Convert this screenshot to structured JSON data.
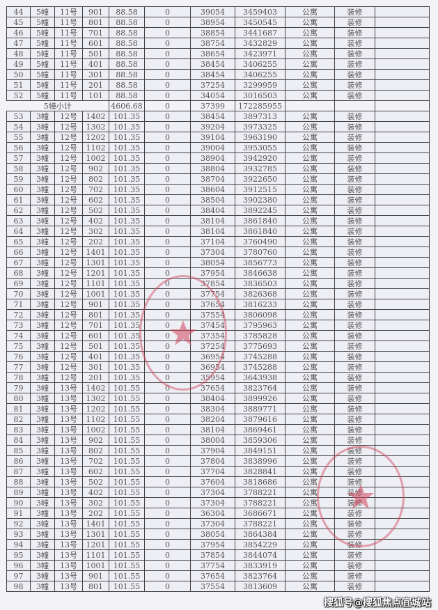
{
  "rows": [
    [
      "44",
      "5幢",
      "11号",
      "901",
      "88.58",
      "0",
      "39054",
      "3459403",
      "公寓",
      "装修",
      ""
    ],
    [
      "45",
      "5幢",
      "11号",
      "801",
      "88.58",
      "0",
      "38954",
      "3450545",
      "公寓",
      "装修",
      ""
    ],
    [
      "46",
      "5幢",
      "11号",
      "701",
      "88.58",
      "0",
      "38854",
      "3441687",
      "公寓",
      "装修",
      ""
    ],
    [
      "47",
      "5幢",
      "11号",
      "601",
      "88.58",
      "0",
      "38754",
      "3432829",
      "公寓",
      "装修",
      ""
    ],
    [
      "48",
      "5幢",
      "11号",
      "501",
      "88.58",
      "0",
      "38654",
      "3423971",
      "公寓",
      "装修",
      ""
    ],
    [
      "49",
      "5幢",
      "11号",
      "401",
      "88.58",
      "0",
      "38454",
      "3406255",
      "公寓",
      "装修",
      ""
    ],
    [
      "50",
      "5幢",
      "11号",
      "301",
      "88.58",
      "0",
      "38454",
      "3406255",
      "公寓",
      "装修",
      ""
    ],
    [
      "51",
      "5幢",
      "11号",
      "201",
      "88.58",
      "0",
      "37254",
      "3299959",
      "公寓",
      "装修",
      ""
    ],
    [
      "52",
      "5幢",
      "11号",
      "101",
      "88.58",
      "0",
      "34054",
      "3016503",
      "公寓",
      "装修",
      ""
    ],
    {
      "subtotal": true,
      "label": "5幢小计",
      "area": "4606.68",
      "zero": "0",
      "price": "37399",
      "total": "172285955"
    },
    [
      "53",
      "3幢",
      "12号",
      "1402",
      "101.35",
      "0",
      "38454",
      "3897313",
      "公寓",
      "装修",
      ""
    ],
    [
      "54",
      "3幢",
      "12号",
      "1302",
      "101.35",
      "0",
      "39204",
      "3973325",
      "公寓",
      "装修",
      ""
    ],
    [
      "55",
      "3幢",
      "12号",
      "1202",
      "101.35",
      "0",
      "39104",
      "3963190",
      "公寓",
      "装修",
      ""
    ],
    [
      "56",
      "3幢",
      "12号",
      "1102",
      "101.35",
      "0",
      "39004",
      "3953055",
      "公寓",
      "装修",
      ""
    ],
    [
      "57",
      "3幢",
      "12号",
      "1002",
      "101.35",
      "0",
      "38904",
      "3942920",
      "公寓",
      "装修",
      ""
    ],
    [
      "58",
      "3幢",
      "12号",
      "902",
      "101.35",
      "0",
      "38804",
      "3932785",
      "公寓",
      "装修",
      ""
    ],
    [
      "59",
      "3幢",
      "12号",
      "802",
      "101.35",
      "0",
      "38704",
      "3922650",
      "公寓",
      "装修",
      ""
    ],
    [
      "60",
      "3幢",
      "12号",
      "702",
      "101.35",
      "0",
      "38604",
      "3912515",
      "公寓",
      "装修",
      ""
    ],
    [
      "61",
      "3幢",
      "12号",
      "602",
      "101.35",
      "0",
      "38504",
      "3902380",
      "公寓",
      "装修",
      ""
    ],
    [
      "62",
      "3幢",
      "12号",
      "502",
      "101.35",
      "0",
      "38404",
      "3892245",
      "公寓",
      "装修",
      ""
    ],
    [
      "63",
      "3幢",
      "12号",
      "402",
      "101.35",
      "0",
      "38104",
      "3861840",
      "公寓",
      "装修",
      ""
    ],
    [
      "64",
      "3幢",
      "12号",
      "302",
      "101.35",
      "0",
      "38104",
      "3861840",
      "公寓",
      "装修",
      ""
    ],
    [
      "65",
      "3幢",
      "12号",
      "202",
      "101.35",
      "0",
      "37104",
      "3760490",
      "公寓",
      "装修",
      ""
    ],
    [
      "66",
      "3幢",
      "12号",
      "1401",
      "101.35",
      "0",
      "37304",
      "3780760",
      "公寓",
      "装修",
      ""
    ],
    [
      "67",
      "3幢",
      "12号",
      "1301",
      "101.35",
      "0",
      "38054",
      "3856773",
      "公寓",
      "装修",
      ""
    ],
    [
      "68",
      "3幢",
      "12号",
      "1201",
      "101.35",
      "0",
      "37954",
      "3846638",
      "公寓",
      "装修",
      ""
    ],
    [
      "69",
      "3幢",
      "12号",
      "1101",
      "101.35",
      "0",
      "37854",
      "3836503",
      "公寓",
      "装修",
      ""
    ],
    [
      "70",
      "3幢",
      "12号",
      "1001",
      "101.35",
      "0",
      "37754",
      "3826368",
      "公寓",
      "装修",
      ""
    ],
    [
      "71",
      "3幢",
      "12号",
      "901",
      "101.35",
      "0",
      "37654",
      "3816233",
      "公寓",
      "装修",
      ""
    ],
    [
      "72",
      "3幢",
      "12号",
      "801",
      "101.35",
      "0",
      "37554",
      "3806098",
      "公寓",
      "装修",
      ""
    ],
    [
      "73",
      "3幢",
      "12号",
      "701",
      "101.35",
      "0",
      "37454",
      "3795963",
      "公寓",
      "装修",
      ""
    ],
    [
      "74",
      "3幢",
      "12号",
      "601",
      "101.35",
      "0",
      "37354",
      "3785828",
      "公寓",
      "装修",
      ""
    ],
    [
      "75",
      "3幢",
      "12号",
      "501",
      "101.35",
      "0",
      "37254",
      "3775693",
      "公寓",
      "装修",
      ""
    ],
    [
      "76",
      "3幢",
      "12号",
      "401",
      "101.35",
      "0",
      "36954",
      "3745288",
      "公寓",
      "装修",
      ""
    ],
    [
      "77",
      "3幢",
      "12号",
      "301",
      "101.35",
      "0",
      "36954",
      "3745288",
      "公寓",
      "装修",
      ""
    ],
    [
      "78",
      "3幢",
      "12号",
      "201",
      "101.35",
      "0",
      "35954",
      "3643938",
      "公寓",
      "装修",
      ""
    ],
    [
      "79",
      "3幢",
      "13号",
      "1402",
      "101.55",
      "0",
      "37654",
      "3823764",
      "公寓",
      "装修",
      ""
    ],
    [
      "80",
      "3幢",
      "13号",
      "1302",
      "101.55",
      "0",
      "38404",
      "3899926",
      "公寓",
      "装修",
      ""
    ],
    [
      "81",
      "3幢",
      "13号",
      "1202",
      "101.55",
      "0",
      "38304",
      "3889771",
      "公寓",
      "装修",
      ""
    ],
    [
      "82",
      "3幢",
      "13号",
      "1102",
      "101.55",
      "0",
      "38204",
      "3879616",
      "公寓",
      "装修",
      ""
    ],
    [
      "83",
      "3幢",
      "13号",
      "1002",
      "101.55",
      "0",
      "38104",
      "3869461",
      "公寓",
      "装修",
      ""
    ],
    [
      "84",
      "3幢",
      "13号",
      "902",
      "101.55",
      "0",
      "38004",
      "3859306",
      "公寓",
      "装修",
      ""
    ],
    [
      "85",
      "3幢",
      "13号",
      "802",
      "101.55",
      "0",
      "37904",
      "3849151",
      "公寓",
      "装修",
      ""
    ],
    [
      "86",
      "3幢",
      "13号",
      "702",
      "101.55",
      "0",
      "37804",
      "3838996",
      "公寓",
      "装修",
      ""
    ],
    [
      "87",
      "3幢",
      "13号",
      "602",
      "101.55",
      "0",
      "37704",
      "3828841",
      "公寓",
      "装修",
      ""
    ],
    [
      "88",
      "3幢",
      "13号",
      "502",
      "101.55",
      "0",
      "37604",
      "3818686",
      "公寓",
      "装修",
      ""
    ],
    [
      "89",
      "3幢",
      "13号",
      "402",
      "101.55",
      "0",
      "37304",
      "3788221",
      "公寓",
      "装修",
      ""
    ],
    [
      "90",
      "3幢",
      "13号",
      "302",
      "101.55",
      "0",
      "37304",
      "3788221",
      "公寓",
      "装修",
      ""
    ],
    [
      "91",
      "3幢",
      "13号",
      "202",
      "101.55",
      "0",
      "36304",
      "3686671",
      "公寓",
      "装修",
      ""
    ],
    [
      "92",
      "3幢",
      "13号",
      "1401",
      "101.55",
      "0",
      "37304",
      "3788221",
      "公寓",
      "装修",
      ""
    ],
    [
      "93",
      "3幢",
      "13号",
      "1301",
      "101.55",
      "0",
      "38054",
      "3864384",
      "公寓",
      "装修",
      ""
    ],
    [
      "94",
      "3幢",
      "13号",
      "1201",
      "101.55",
      "0",
      "37954",
      "3854229",
      "公寓",
      "装修",
      ""
    ],
    [
      "95",
      "3幢",
      "13号",
      "1101",
      "101.55",
      "0",
      "37854",
      "3844074",
      "公寓",
      "装修",
      ""
    ],
    [
      "96",
      "3幢",
      "13号",
      "1001",
      "101.55",
      "0",
      "37754",
      "3833919",
      "公寓",
      "装修",
      ""
    ],
    [
      "97",
      "3幢",
      "13号",
      "901",
      "101.55",
      "0",
      "37654",
      "3823764",
      "公寓",
      "装修",
      ""
    ],
    [
      "98",
      "3幢",
      "13号",
      "801",
      "101.55",
      "0",
      "37554",
      "3813609",
      "公寓",
      "装修",
      ""
    ]
  ],
  "watermark": "搜狐号@搜狐焦点宜城站",
  "stamp_color": "#d2506a"
}
